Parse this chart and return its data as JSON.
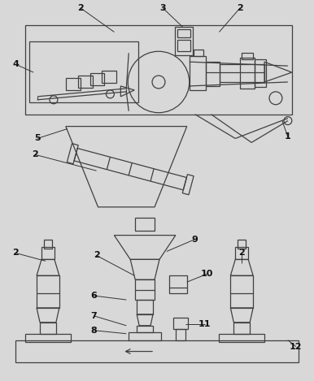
{
  "bg_color": "#d8d8d8",
  "line_color": "#404040",
  "lw": 0.9,
  "fig_width": 3.86,
  "fig_height": 4.69,
  "dpi": 100
}
